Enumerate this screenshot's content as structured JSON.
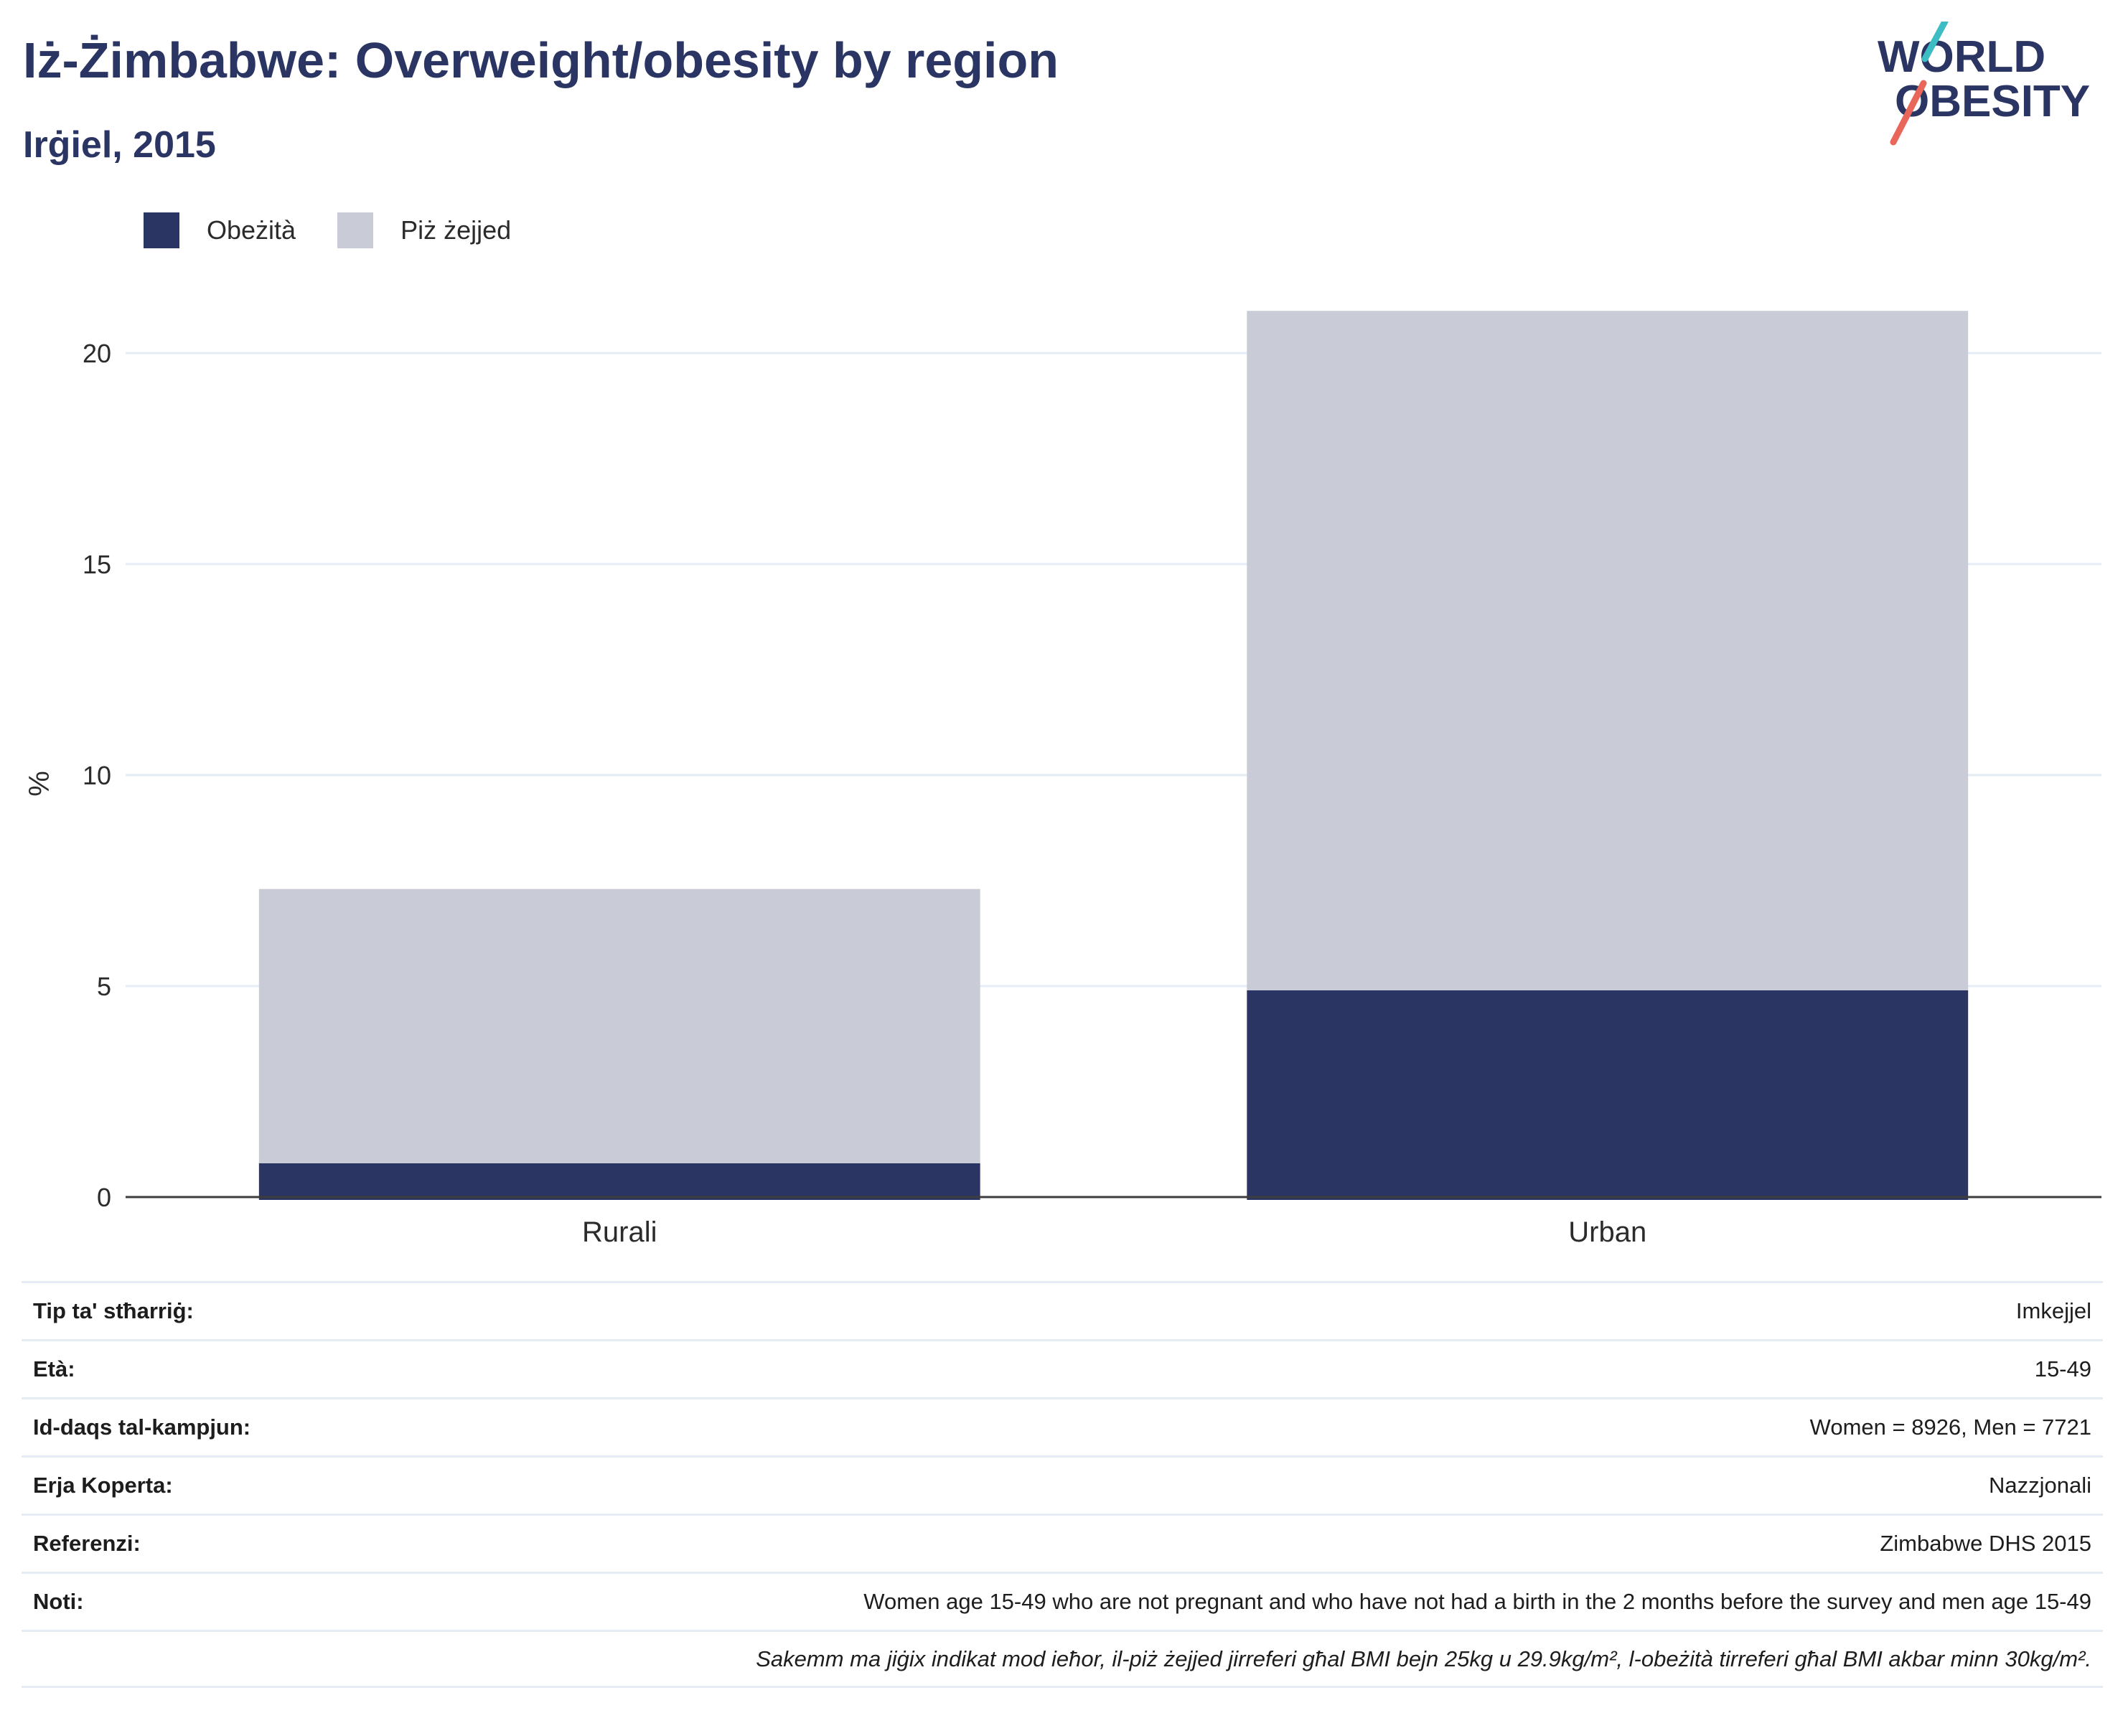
{
  "header": {
    "title": "Iż-Żimbabwe: Overweight/obesity by region",
    "subtitle": "Irġiel, 2015"
  },
  "logo": {
    "line1": "WORLD",
    "line2": "OBESITY",
    "colors": {
      "text": "#2a3563",
      "slash_top": "#3cbcc3",
      "slash_bottom": "#e8675a"
    }
  },
  "legend": {
    "items": [
      {
        "label": "Obeżità",
        "color": "#2a3563"
      },
      {
        "label": "Piż żejjed",
        "color": "#c9cbd7"
      }
    ]
  },
  "chart_data": {
    "type": "bar",
    "stacked": true,
    "categories": [
      "Rurali",
      "Urban"
    ],
    "series": [
      {
        "name": "Obeżità",
        "color": "#2a3563",
        "values": [
          0.8,
          4.9
        ]
      },
      {
        "name": "Piż żejjed",
        "color": "#c9cbd7",
        "values": [
          6.5,
          16.1
        ]
      }
    ],
    "ylabel": "%",
    "xlabel": "",
    "ylim": [
      0,
      22.5
    ],
    "yticks": [
      0,
      5,
      10,
      15,
      20
    ],
    "grid": true,
    "legend_position": "top-left"
  },
  "info": {
    "rows": [
      {
        "key": "Tip ta' stħarriġ:",
        "value": "Imkejjel"
      },
      {
        "key": "Età:",
        "value": "15-49"
      },
      {
        "key": "Id-daqs tal-kampjun:",
        "value": "Women = 8926, Men = 7721"
      },
      {
        "key": "Erja Koperta:",
        "value": "Nazzjonali"
      },
      {
        "key": "Referenzi:",
        "value": "Zimbabwe DHS 2015"
      },
      {
        "key": "Noti:",
        "value": "Women age 15-49 who are not pregnant and who have not had a birth in the 2 months before the survey and men age 15-49"
      }
    ],
    "footnote": "Sakemm ma jiġix indikat mod ieħor, il-piż żejjed jirreferi għal BMI bejn 25kg u 29.9kg/m², l-obeżità tirreferi għal BMI akbar minn 30kg/m²."
  }
}
